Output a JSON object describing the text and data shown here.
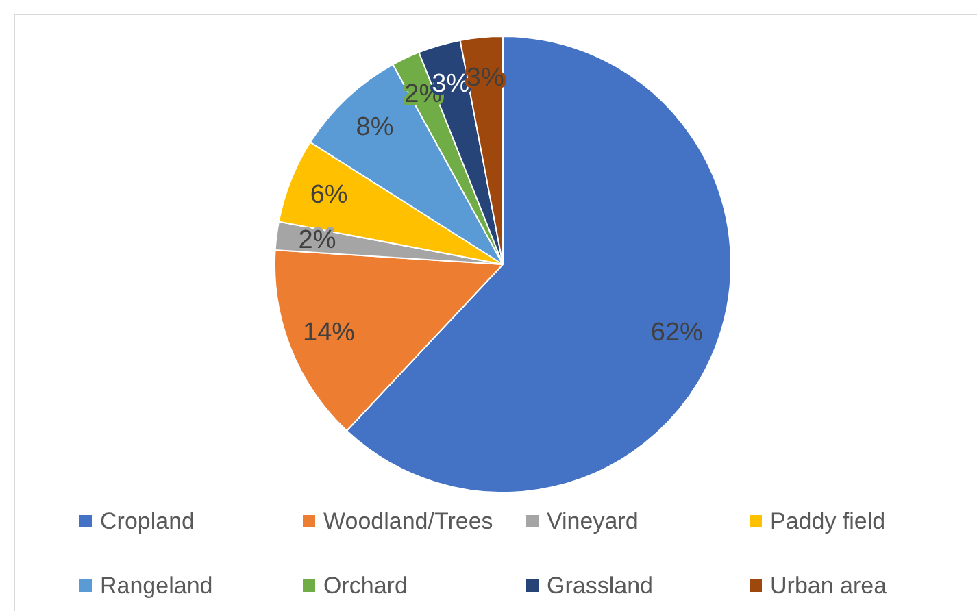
{
  "chart_data": {
    "type": "pie",
    "categories": [
      "Cropland",
      "Woodland/Trees",
      "Vineyard",
      "Paddy field",
      "Rangeland",
      "Orchard",
      "Grassland",
      "Urban area"
    ],
    "values": [
      62,
      14,
      2,
      6,
      8,
      2,
      3,
      3
    ],
    "colors": [
      "#4472c4",
      "#ed7d31",
      "#a5a5a5",
      "#ffc000",
      "#5b9bd5",
      "#70ad47",
      "#264478",
      "#9e480e"
    ],
    "value_labels": [
      "62%",
      "14%",
      "2%",
      "6%",
      "8%",
      "2%",
      "3%",
      "3%"
    ],
    "legend": "bottom"
  }
}
